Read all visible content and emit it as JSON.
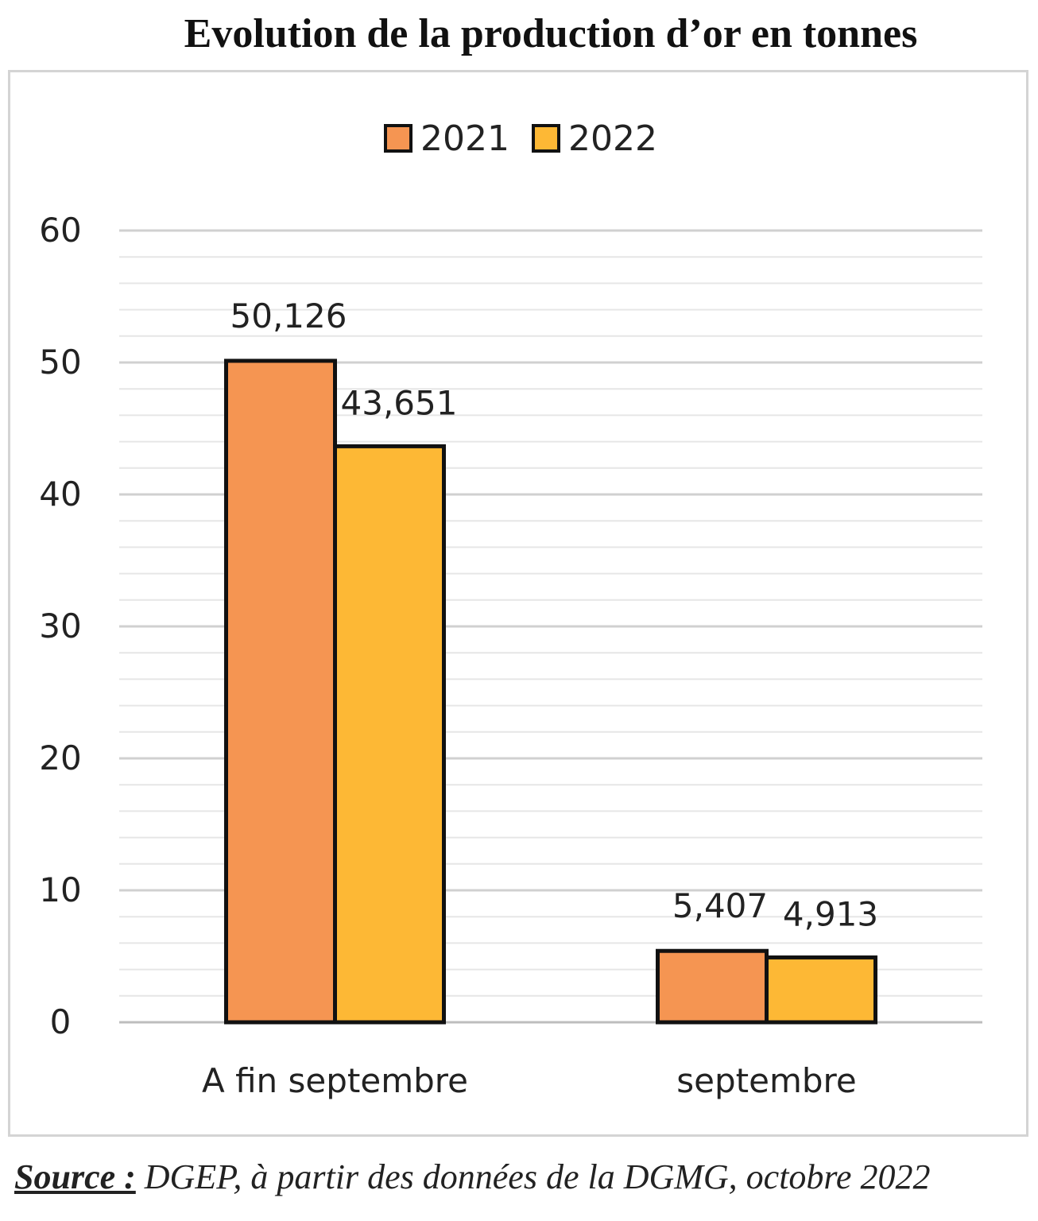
{
  "title": "Evolution de la production d’or en tonnes",
  "source": {
    "label": "Source :",
    "text": "DGEP, à partir des données de la DGMG, octobre 2022"
  },
  "chart_data": {
    "type": "bar",
    "title": "Evolution de la production d’or en tonnes",
    "categories": [
      "A fin septembre",
      "septembre"
    ],
    "series": [
      {
        "name": "2021",
        "values": [
          50.126,
          5.407
        ],
        "labels": [
          "50,126",
          "5,407"
        ],
        "color": "#F59552"
      },
      {
        "name": "2022",
        "values": [
          43.651,
          4.913
        ],
        "labels": [
          "43,651",
          "4,913"
        ],
        "color": "#FDB835"
      }
    ],
    "ylim": [
      0,
      60
    ],
    "yticks": [
      0,
      10,
      20,
      30,
      40,
      50,
      60
    ],
    "minor_grid_step": 2,
    "legend_position": "top-center",
    "grid": true,
    "xlabel": "",
    "ylabel": ""
  }
}
